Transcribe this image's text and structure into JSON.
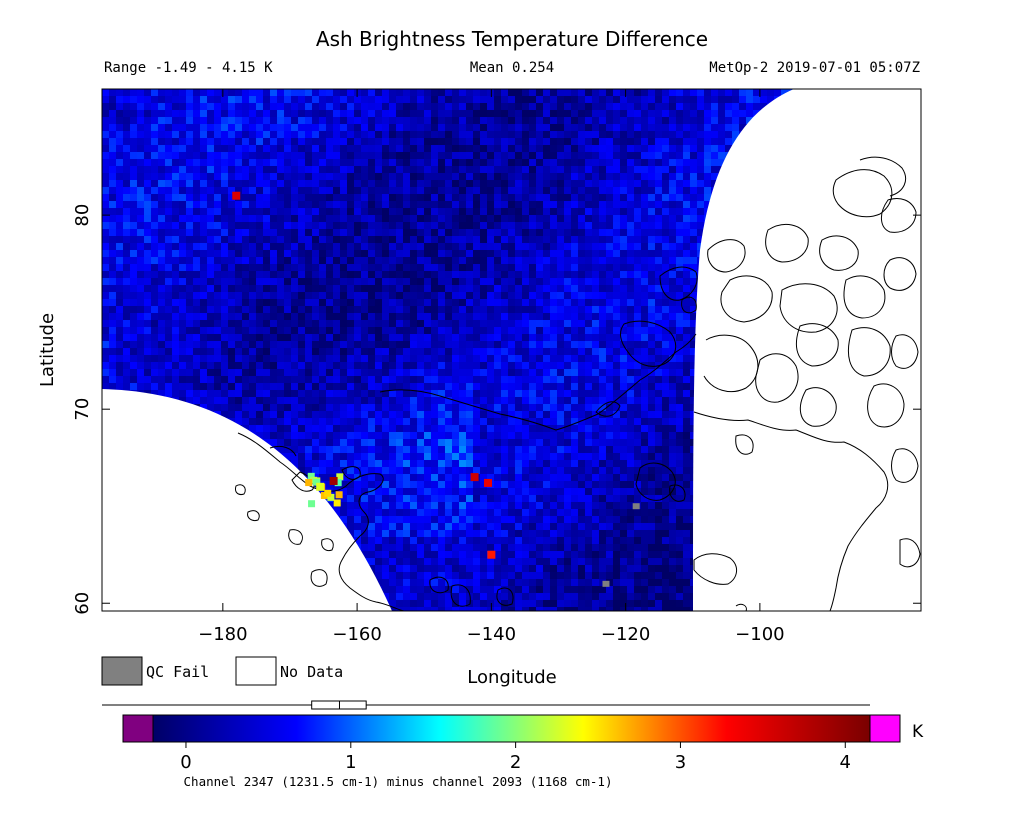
{
  "chart_data": {
    "type": "heatmap",
    "title": "Ash Brightness Temperature Difference",
    "header": {
      "range": "Range -1.49 - 4.15 K",
      "mean": "Mean 0.254",
      "source": "MetOp-2 2019-07-01 05:07Z"
    },
    "xlabel": "Longitude",
    "ylabel": "Latitude",
    "xlim": [
      -198,
      -76
    ],
    "ylim": [
      59.6,
      86.5
    ],
    "x_ticks": [
      -180,
      -160,
      -140,
      -120,
      -100
    ],
    "y_ticks": [
      60,
      70,
      80
    ],
    "grid": false,
    "legend": {
      "qc_fail": "QC Fail",
      "no_data": "No Data"
    },
    "colorbar": {
      "min": -0.2,
      "max": 4.15,
      "ticks": [
        0,
        1,
        2,
        3,
        4
      ],
      "unit": "K",
      "caption": "Channel 2347 (1231.5 cm-1) minus channel 2093 (1168 cm-1)",
      "stops": [
        "#000066",
        "#0000ff",
        "#00ffff",
        "#ffff00",
        "#ff0000",
        "#7a0000"
      ],
      "underflow_color": "#800080",
      "overflow_color": "#ff00ff",
      "boxplot": {
        "whisker_low": -1.49,
        "q1": 0.05,
        "median": 0.254,
        "q3": 0.45,
        "whisker_high": 4.15
      }
    },
    "swath_background_K": 0.35,
    "hotspots": [
      {
        "lon": -165.5,
        "lat": 66.0,
        "value": 2.3
      },
      {
        "lon": -163.5,
        "lat": 66.3,
        "value": 3.9
      },
      {
        "lon": -142.5,
        "lat": 66.5,
        "value": 3.6
      },
      {
        "lon": -140.5,
        "lat": 66.2,
        "value": 3.4
      },
      {
        "lon": -140.0,
        "lat": 62.5,
        "value": 3.2
      },
      {
        "lon": -178.0,
        "lat": 81.0,
        "value": 3.5
      }
    ],
    "qc_fail_points": [
      {
        "lon": -123.0,
        "lat": 61.0
      },
      {
        "lon": -118.5,
        "lat": 65.0
      }
    ],
    "colors": {
      "no_data": "#ffffff",
      "qc_fail": "#808080",
      "coastline": "#000000"
    }
  }
}
